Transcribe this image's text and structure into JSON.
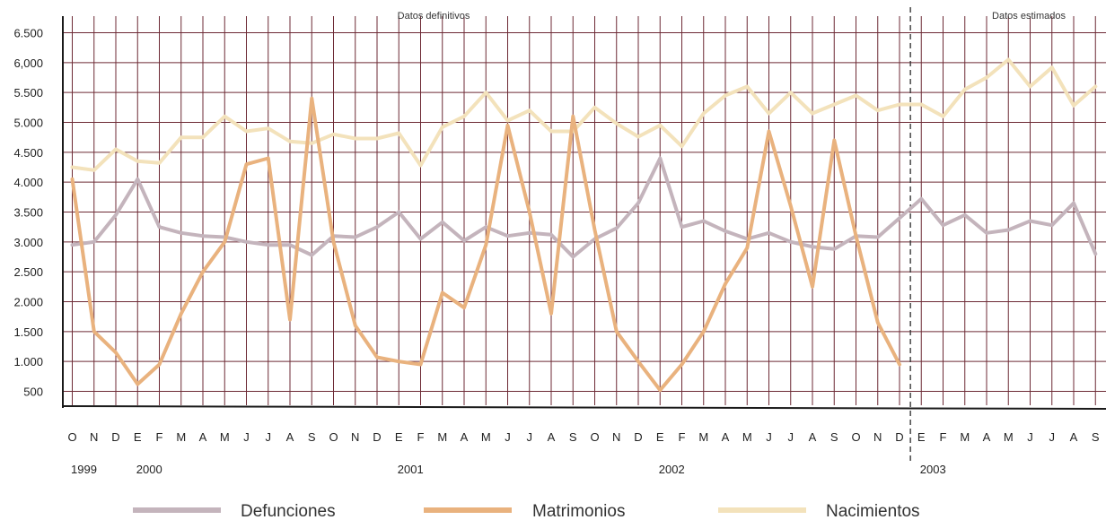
{
  "chart_data": {
    "type": "line",
    "annotations": [
      "Datos definitivos",
      "Datos estimados"
    ],
    "x": [
      "O",
      "N",
      "D",
      "E",
      "F",
      "M",
      "A",
      "M",
      "J",
      "J",
      "A",
      "S",
      "O",
      "N",
      "D",
      "E",
      "F",
      "M",
      "A",
      "M",
      "J",
      "J",
      "A",
      "S",
      "O",
      "N",
      "D",
      "E",
      "F",
      "M",
      "A",
      "M",
      "J",
      "J",
      "A",
      "S",
      "O",
      "N",
      "D",
      "E",
      "F",
      "M",
      "A",
      "M",
      "J",
      "J",
      "A",
      "S"
    ],
    "years": [
      {
        "label": "1999",
        "index": 0
      },
      {
        "label": "2000",
        "index": 3
      },
      {
        "label": "2001",
        "index": 15
      },
      {
        "label": "2002",
        "index": 27
      },
      {
        "label": "2003",
        "index": 39
      }
    ],
    "y_ticks": [
      {
        "value": 500,
        "label": "500"
      },
      {
        "value": 1000,
        "label": "1.000"
      },
      {
        "value": 1500,
        "label": "1.500"
      },
      {
        "value": 2000,
        "label": "2.000"
      },
      {
        "value": 2500,
        "label": "2.500"
      },
      {
        "value": 3000,
        "label": "3.000"
      },
      {
        "value": 3500,
        "label": "3.500"
      },
      {
        "value": 4000,
        "label": "4.000"
      },
      {
        "value": 4500,
        "label": "4.500"
      },
      {
        "value": 5000,
        "label": "5.000"
      },
      {
        "value": 5500,
        "label": "5.500"
      },
      {
        "value": 6000,
        "label": "6,000"
      },
      {
        "value": 6500,
        "label": "6.500"
      }
    ],
    "ylim": [
      -250,
      6800
    ],
    "estimate_boundary": 38.5,
    "grid": true,
    "legend_position": "bottom",
    "series": [
      {
        "name": "Defunciones",
        "color": "#c4b4bc",
        "values": [
          2950,
          3000,
          3450,
          4050,
          3250,
          3150,
          3100,
          3080,
          3000,
          2950,
          2950,
          2780,
          3100,
          3080,
          3250,
          3500,
          3050,
          3330,
          3020,
          3250,
          3100,
          3150,
          3120,
          2750,
          3050,
          3230,
          3650,
          4400,
          3250,
          3350,
          3180,
          3050,
          3150,
          3000,
          2920,
          2880,
          3100,
          3080,
          3400,
          3720,
          3280,
          3450,
          3150,
          3200,
          3350,
          3280,
          3650,
          2800
        ]
      },
      {
        "name": "Matrimonios",
        "color": "#e9b27e",
        "values": [
          4050,
          1500,
          1150,
          620,
          950,
          1800,
          2500,
          3000,
          4300,
          4400,
          1700,
          5400,
          3000,
          1600,
          1070,
          1000,
          950,
          2150,
          1900,
          2950,
          4950,
          3500,
          1800,
          5100,
          3200,
          1500,
          1000,
          520,
          950,
          1500,
          2300,
          2900,
          4850,
          3600,
          2250,
          4700,
          3100,
          1650,
          950,
          null,
          null,
          null,
          null,
          null,
          null,
          null,
          null,
          null
        ]
      },
      {
        "name": "Nacimientos",
        "color": "#f3e2bb",
        "values": [
          4250,
          4200,
          4550,
          4350,
          4320,
          4750,
          4750,
          5100,
          4850,
          4900,
          4680,
          4650,
          4800,
          4730,
          4730,
          4820,
          4280,
          4920,
          5100,
          5500,
          5030,
          5200,
          4850,
          4850,
          5250,
          4980,
          4760,
          4950,
          4600,
          5150,
          5450,
          5600,
          5150,
          5500,
          5150,
          5300,
          5450,
          5200,
          5300,
          5300,
          5100,
          5550,
          5750,
          6050,
          5600,
          5920,
          5280,
          5600
        ]
      }
    ]
  }
}
